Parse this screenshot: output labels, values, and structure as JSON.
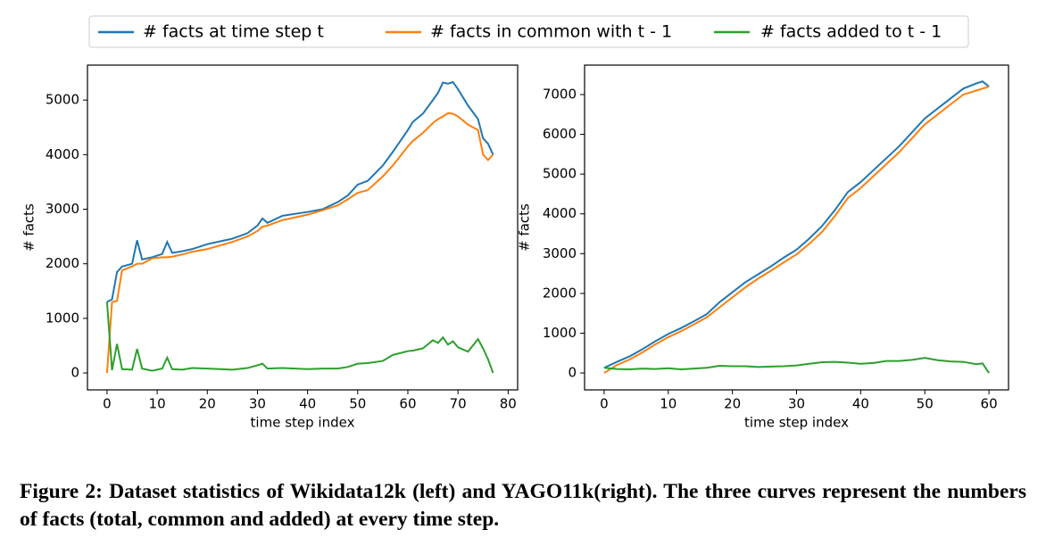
{
  "chart_data": [
    {
      "type": "line",
      "xlabel": "time step index",
      "ylabel": "# facts",
      "x": [
        0,
        1,
        2,
        3,
        5,
        6,
        7,
        9,
        11,
        12,
        13,
        15,
        17,
        20,
        25,
        28,
        30,
        31,
        32,
        35,
        40,
        43,
        46,
        48,
        50,
        52,
        55,
        57,
        60,
        61,
        63,
        65,
        66,
        67,
        68,
        69,
        70,
        72,
        74,
        75,
        76,
        77
      ],
      "series": [
        {
          "name": "# facts at time step t",
          "color": "#1f77b4",
          "values": [
            1300,
            1350,
            1850,
            1950,
            2000,
            2430,
            2080,
            2120,
            2180,
            2400,
            2200,
            2230,
            2270,
            2360,
            2460,
            2560,
            2700,
            2830,
            2750,
            2880,
            2950,
            3000,
            3130,
            3250,
            3450,
            3520,
            3800,
            4050,
            4450,
            4600,
            4750,
            5000,
            5130,
            5320,
            5300,
            5330,
            5200,
            4900,
            4650,
            4300,
            4200,
            4000
          ]
        },
        {
          "name": "# facts in common with t - 1",
          "color": "#ff7f0e",
          "values": [
            0,
            1300,
            1320,
            1880,
            1950,
            2000,
            2000,
            2100,
            2120,
            2120,
            2130,
            2170,
            2220,
            2270,
            2400,
            2500,
            2600,
            2680,
            2700,
            2800,
            2900,
            2980,
            3070,
            3180,
            3300,
            3350,
            3600,
            3800,
            4150,
            4250,
            4400,
            4580,
            4650,
            4700,
            4760,
            4750,
            4700,
            4550,
            4450,
            4000,
            3900,
            4000
          ]
        },
        {
          "name": "# facts added to t - 1",
          "color": "#2ca02c",
          "values": [
            1300,
            50,
            530,
            70,
            60,
            440,
            80,
            40,
            80,
            280,
            70,
            60,
            90,
            80,
            60,
            90,
            140,
            170,
            80,
            90,
            70,
            80,
            80,
            110,
            170,
            180,
            220,
            330,
            400,
            410,
            450,
            600,
            550,
            650,
            520,
            580,
            470,
            390,
            620,
            450,
            250,
            0
          ]
        }
      ],
      "xlim": [
        -3.9,
        81.9
      ],
      "ylim": [
        -310,
        5640
      ],
      "xticks": [
        0,
        10,
        20,
        30,
        40,
        50,
        60,
        70,
        80
      ],
      "yticks": [
        0,
        1000,
        2000,
        3000,
        4000,
        5000
      ],
      "grid": false
    },
    {
      "type": "line",
      "xlabel": "time step index",
      "ylabel": "# facts",
      "x": [
        0,
        2,
        4,
        6,
        8,
        10,
        12,
        14,
        16,
        18,
        20,
        22,
        24,
        26,
        28,
        30,
        32,
        34,
        36,
        38,
        40,
        42,
        44,
        46,
        48,
        50,
        52,
        54,
        56,
        58,
        59,
        60
      ],
      "series": [
        {
          "color": "#1f77b4",
          "values": [
            130,
            280,
            420,
            600,
            800,
            980,
            1130,
            1300,
            1480,
            1780,
            2030,
            2280,
            2480,
            2680,
            2900,
            3100,
            3380,
            3700,
            4100,
            4550,
            4800,
            5100,
            5400,
            5700,
            6050,
            6400,
            6650,
            6900,
            7150,
            7280,
            7330,
            7200
          ]
        },
        {
          "color": "#ff7f0e",
          "values": [
            0,
            200,
            340,
            520,
            720,
            900,
            1050,
            1220,
            1400,
            1650,
            1900,
            2150,
            2370,
            2570,
            2780,
            2980,
            3250,
            3550,
            3950,
            4400,
            4650,
            4950,
            5250,
            5550,
            5900,
            6250,
            6500,
            6750,
            7000,
            7100,
            7150,
            7200
          ]
        },
        {
          "color": "#2ca02c",
          "values": [
            130,
            100,
            90,
            110,
            100,
            120,
            90,
            110,
            130,
            180,
            170,
            170,
            150,
            160,
            170,
            190,
            230,
            270,
            280,
            260,
            230,
            250,
            300,
            300,
            330,
            380,
            320,
            290,
            280,
            220,
            240,
            0
          ]
        }
      ],
      "xlim": [
        -3.05,
        63.05
      ],
      "ylim": [
        -425,
        7740
      ],
      "xticks": [
        0,
        10,
        20,
        30,
        40,
        50,
        60
      ],
      "yticks": [
        0,
        1000,
        2000,
        3000,
        4000,
        5000,
        6000,
        7000
      ],
      "grid": false
    }
  ],
  "caption": "Figure 2: Dataset statistics of Wikidata12k (left) and YAGO11k(right). The three curves represent the numbers of facts (total, common and added) at every time step."
}
